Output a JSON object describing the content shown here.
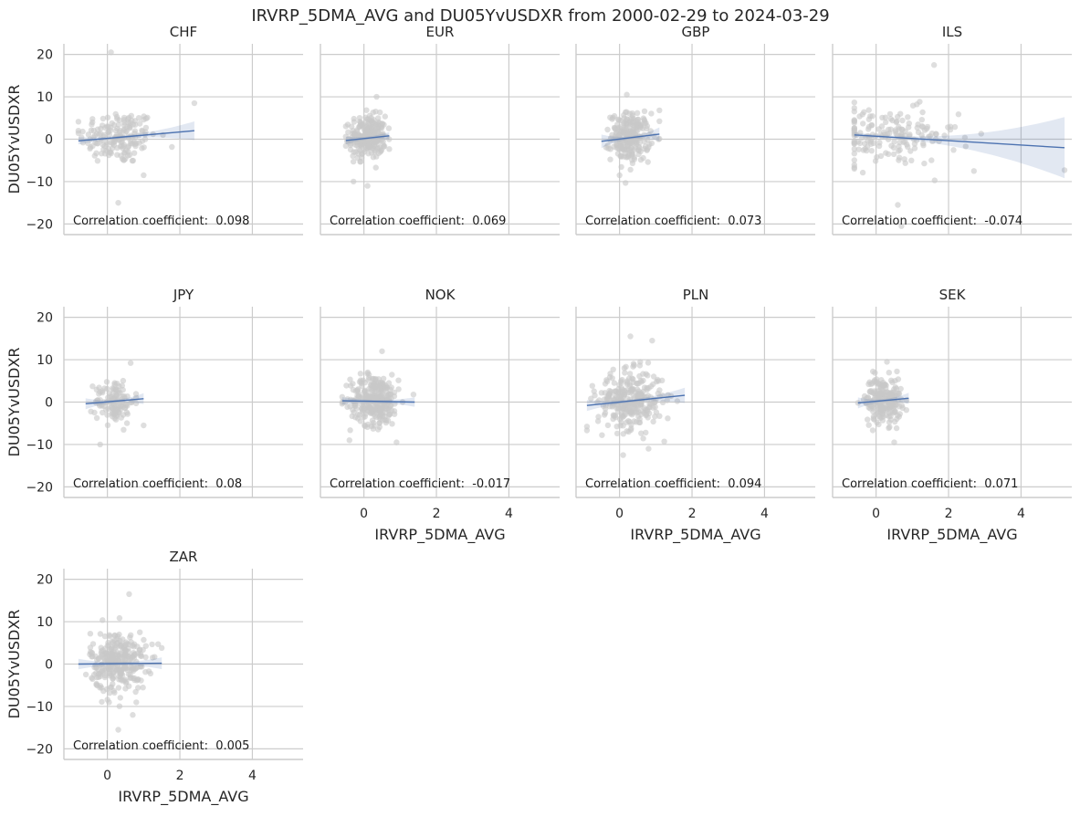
{
  "figure": {
    "title": "IRVRP_5DMA_AVG and DU05YvUSDXR from 2000-02-29 to 2024-03-29"
  },
  "chart_data": {
    "type": "scatter",
    "layout": "facet-grid",
    "xlabel": "IRVRP_5DMA_AVG",
    "ylabel": "DU05YvUSDXR",
    "xlim": [
      -1.2,
      5.4
    ],
    "ylim": [
      -22.5,
      22.5
    ],
    "xticks": [
      0,
      2,
      4
    ],
    "yticks": [
      -20,
      -10,
      0,
      10,
      20
    ],
    "grid": true,
    "regression_line": true,
    "annotation_prefix": "Correlation coefficient:  ",
    "panels": [
      {
        "name": "CHF",
        "corr": "0.098",
        "x_range": [
          -0.8,
          2.4
        ],
        "y_center": 0.5,
        "y_spread": 3.2,
        "count": 170,
        "line": {
          "x": [
            -0.8,
            2.4
          ],
          "y": [
            -0.4,
            2.0
          ]
        },
        "ci_halfwidth_end": 2.2,
        "outliers": [
          [
            0.1,
            20.5
          ],
          [
            0.3,
            -15
          ],
          [
            1.0,
            -8.5
          ],
          [
            2.4,
            8.5
          ]
        ]
      },
      {
        "name": "EUR",
        "corr": "0.069",
        "x_range": [
          -0.5,
          0.7
        ],
        "y_center": 0.5,
        "y_spread": 2.5,
        "count": 260,
        "line": {
          "x": [
            -0.5,
            0.7
          ],
          "y": [
            -0.3,
            0.8
          ]
        },
        "ci_halfwidth_end": 0.9,
        "outliers": [
          [
            0.35,
            10
          ],
          [
            0.1,
            -11
          ]
        ]
      },
      {
        "name": "GBP",
        "corr": "0.073",
        "x_range": [
          -0.5,
          1.1
        ],
        "y_center": 0.5,
        "y_spread": 2.8,
        "count": 240,
        "line": {
          "x": [
            -0.5,
            1.1
          ],
          "y": [
            -0.5,
            1.2
          ]
        },
        "ci_halfwidth_end": 1.6,
        "outliers": [
          [
            0.2,
            10.5
          ],
          [
            1.1,
            6.8
          ],
          [
            0.0,
            -8.5
          ]
        ]
      },
      {
        "name": "ILS",
        "corr": "-0.074",
        "x_range": [
          -0.6,
          5.2
        ],
        "y_center": 0.5,
        "y_spread": 3.4,
        "count": 170,
        "line": {
          "x": [
            -0.6,
            5.2
          ],
          "y": [
            1.0,
            -2.0
          ]
        },
        "ci_halfwidth_end": 7.2,
        "outliers": [
          [
            1.6,
            17.5
          ],
          [
            5.2,
            -7.3
          ],
          [
            2.7,
            -7.5
          ],
          [
            2.9,
            1.3
          ],
          [
            0.7,
            -20.5
          ],
          [
            0.6,
            -15.5
          ]
        ]
      },
      {
        "name": "JPY",
        "corr": "0.08",
        "x_range": [
          -0.6,
          1.0
        ],
        "y_center": 0.3,
        "y_spread": 2.6,
        "count": 120,
        "line": {
          "x": [
            -0.6,
            1.0
          ],
          "y": [
            -0.4,
            0.8
          ]
        },
        "ci_halfwidth_end": 1.3,
        "outliers": [
          [
            -0.2,
            -10
          ],
          [
            1.0,
            -5.5
          ]
        ]
      },
      {
        "name": "NOK",
        "corr": "-0.017",
        "x_range": [
          -0.6,
          1.4
        ],
        "y_center": 0.5,
        "y_spread": 3.0,
        "count": 300,
        "line": {
          "x": [
            -0.6,
            1.4
          ],
          "y": [
            0.3,
            0.0
          ]
        },
        "ci_halfwidth_end": 1.1,
        "outliers": [
          [
            0.5,
            12
          ],
          [
            -0.4,
            -9
          ],
          [
            0.9,
            -9.5
          ]
        ]
      },
      {
        "name": "PLN",
        "corr": "0.094",
        "x_range": [
          -0.9,
          1.8
        ],
        "y_center": 0.5,
        "y_spread": 3.4,
        "count": 300,
        "line": {
          "x": [
            -0.9,
            1.8
          ],
          "y": [
            -0.8,
            1.6
          ]
        },
        "ci_halfwidth_end": 1.8,
        "outliers": [
          [
            0.3,
            15.5
          ],
          [
            0.9,
            14.5
          ],
          [
            0.1,
            -12.5
          ],
          [
            0.8,
            -11
          ]
        ]
      },
      {
        "name": "SEK",
        "corr": "0.071",
        "x_range": [
          -0.5,
          0.9
        ],
        "y_center": 0.5,
        "y_spread": 2.7,
        "count": 220,
        "line": {
          "x": [
            -0.5,
            0.9
          ],
          "y": [
            -0.2,
            0.9
          ]
        },
        "ci_halfwidth_end": 1.3,
        "outliers": [
          [
            0.3,
            9.5
          ],
          [
            0.5,
            -9.5
          ]
        ]
      },
      {
        "name": "ZAR",
        "corr": "0.005",
        "x_range": [
          -0.8,
          1.5
        ],
        "y_center": 0.5,
        "y_spread": 3.6,
        "count": 300,
        "line": {
          "x": [
            -0.8,
            1.5
          ],
          "y": [
            0.0,
            0.2
          ]
        },
        "ci_halfwidth_end": 1.4,
        "outliers": [
          [
            0.6,
            16.5
          ],
          [
            0.3,
            -15.5
          ],
          [
            0.7,
            -12
          ],
          [
            1.5,
            3.8
          ]
        ]
      }
    ]
  }
}
